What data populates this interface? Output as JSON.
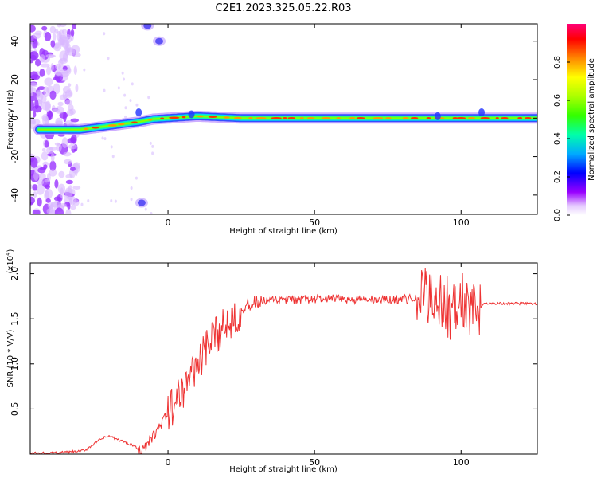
{
  "figure": {
    "title": "C2E1.2023.325.05.22.R03"
  },
  "chart_data": [
    {
      "type": "heatmap",
      "title": "C2E1.2023.325.05.22.R03",
      "xlabel": "Height of straight line (km)",
      "ylabel": "Frequency (Hz)",
      "xlim": [
        -47,
        126
      ],
      "ylim": [
        -50,
        49
      ],
      "xticks": [
        0,
        50,
        100
      ],
      "yticks": [
        -40,
        -20,
        0,
        20,
        40
      ],
      "xtick_labels": [
        "0",
        "50",
        "100"
      ],
      "ytick_labels": [
        "-40",
        "-20",
        "0",
        "20",
        "40"
      ],
      "colorbar": {
        "label": "Normalized spectral amplitude",
        "range": [
          0,
          1
        ],
        "ticks": [
          0.0,
          0.2,
          0.4,
          0.6,
          0.8
        ],
        "tick_labels": [
          "0.0",
          "0.2",
          "0.4",
          "0.6",
          "0.8"
        ],
        "colormap": [
          "#ffffff",
          "#d8b0ff",
          "#8800ff",
          "#0000ff",
          "#00ccff",
          "#00ff66",
          "#66ff00",
          "#ffff00",
          "#ff8800",
          "#ff0000",
          "#ff0088"
        ]
      },
      "ridge": {
        "description_points": [
          {
            "x": -47,
            "y": -6
          },
          {
            "x": -40,
            "y": -6
          },
          {
            "x": -30,
            "y": -6
          },
          {
            "x": -25,
            "y": -5
          },
          {
            "x": -20,
            "y": -4
          },
          {
            "x": -15,
            "y": -3
          },
          {
            "x": -10,
            "y": -2
          },
          {
            "x": -5,
            "y": -0.5
          },
          {
            "x": 0,
            "y": 0
          },
          {
            "x": 10,
            "y": 1
          },
          {
            "x": 25,
            "y": 0
          },
          {
            "x": 50,
            "y": 0
          },
          {
            "x": 75,
            "y": 0
          },
          {
            "x": 100,
            "y": 0
          },
          {
            "x": 126,
            "y": 0
          }
        ]
      },
      "features": [
        {
          "name": "upper-blob",
          "x": -7,
          "y": 48
        },
        {
          "name": "upper-streak",
          "x": -3,
          "y": 40
        },
        {
          "name": "lower-blob",
          "x": -9,
          "y": -44
        }
      ]
    },
    {
      "type": "line",
      "xlabel": "Height of straight line (km)",
      "ylabel": "SNR (10 * V/V)",
      "y_exponent_label": "(x10",
      "y_exponent": "4",
      "y_exponent_close": ")",
      "xlim": [
        -47,
        126
      ],
      "ylim": [
        0,
        2.12
      ],
      "xticks": [
        0,
        50,
        100
      ],
      "yticks": [
        0.5,
        1.0,
        1.5,
        2.0
      ],
      "xtick_labels": [
        "0",
        "50",
        "100"
      ],
      "ytick_labels": [
        "0.5",
        "1.0",
        "1.5",
        "2.0"
      ],
      "color": "#ee3333",
      "series": [
        {
          "x": [
            -47,
            -40,
            -35,
            -30,
            -28,
            -25,
            -22,
            -20,
            -18,
            -15,
            -12,
            -10,
            -8,
            -6,
            -4,
            -2,
            0,
            2,
            4,
            6,
            8,
            10,
            12,
            14,
            16,
            18,
            20,
            22,
            24,
            26,
            28,
            30,
            35,
            40,
            45,
            50,
            55,
            60,
            65,
            70,
            75,
            80,
            85,
            88,
            90,
            92,
            94,
            96,
            98,
            100,
            102,
            104,
            106,
            108,
            110,
            115,
            120,
            126
          ],
          "y": [
            0.01,
            0.01,
            0.02,
            0.03,
            0.05,
            0.12,
            0.18,
            0.2,
            0.17,
            0.14,
            0.1,
            0.05,
            0.06,
            0.15,
            0.25,
            0.35,
            0.45,
            0.55,
            0.65,
            0.78,
            0.9,
            1.0,
            1.1,
            1.2,
            1.3,
            1.38,
            1.45,
            1.52,
            1.58,
            1.62,
            1.66,
            1.68,
            1.7,
            1.71,
            1.71,
            1.72,
            1.72,
            1.72,
            1.71,
            1.71,
            1.71,
            1.72,
            1.72,
            1.74,
            1.78,
            1.7,
            1.68,
            1.62,
            1.55,
            1.75,
            1.62,
            1.55,
            1.6,
            1.68,
            1.67,
            1.67,
            1.67,
            1.67
          ]
        }
      ]
    }
  ]
}
